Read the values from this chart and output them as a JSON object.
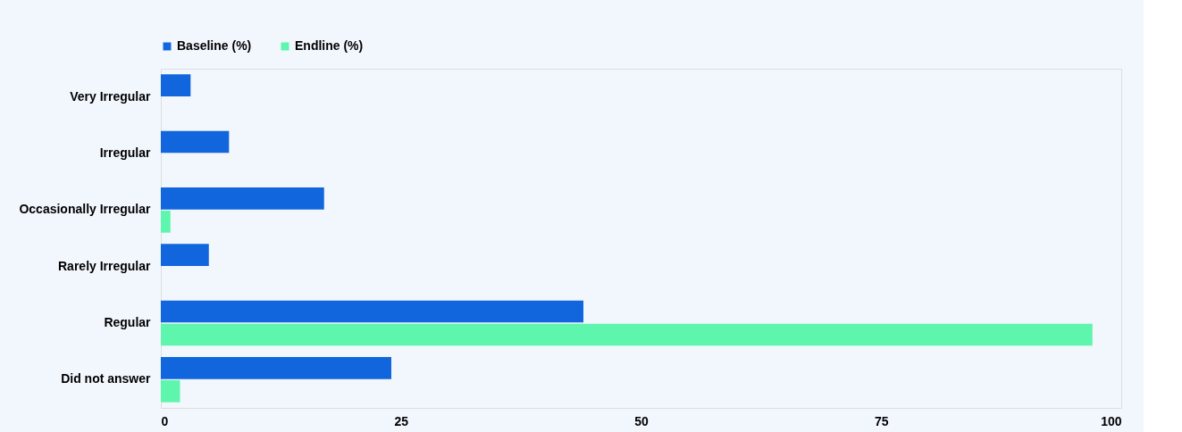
{
  "chart_data": {
    "type": "bar",
    "orientation": "horizontal",
    "categories": [
      "Very Irregular",
      "Irregular",
      "Occasionally Irregular",
      "Rarely Irregular",
      "Regular",
      "Did not answer"
    ],
    "series": [
      {
        "name": "Baseline (%)",
        "color": "#1166dd",
        "values": [
          3.1,
          7.1,
          17.0,
          5.0,
          44.0,
          24.0
        ]
      },
      {
        "name": "Endline (%)",
        "color": "#5ef5ad",
        "values": [
          null,
          null,
          1.0,
          null,
          97.0,
          2.0
        ]
      }
    ],
    "xlim": [
      0,
      100
    ],
    "xticks": [
      0,
      25,
      50,
      75,
      100
    ],
    "grid": false,
    "legend": "top"
  }
}
